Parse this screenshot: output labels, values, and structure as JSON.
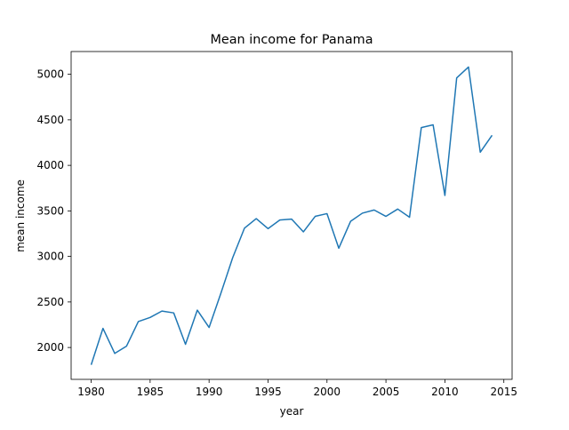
{
  "chart_data": {
    "type": "line",
    "title": "Mean income for Panama",
    "xlabel": "year",
    "ylabel": "mean income",
    "xlim": [
      1978.3,
      2015.7
    ],
    "ylim": [
      1650,
      5250
    ],
    "x_ticks": [
      1980,
      1985,
      1990,
      1995,
      2000,
      2005,
      2010,
      2015
    ],
    "y_ticks": [
      2000,
      2500,
      3000,
      3500,
      4000,
      4500,
      5000
    ],
    "grid": false,
    "legend": "none",
    "line_color": "#1f77b4",
    "x": [
      1980,
      1981,
      1982,
      1983,
      1984,
      1985,
      1986,
      1987,
      1988,
      1989,
      1990,
      1991,
      1992,
      1993,
      1994,
      1995,
      1996,
      1997,
      1998,
      1999,
      2000,
      2001,
      2002,
      2003,
      2004,
      2005,
      2006,
      2007,
      2008,
      2009,
      2010,
      2011,
      2012,
      2013,
      2014
    ],
    "series": [
      {
        "values": [
          1810,
          2210,
          1935,
          2015,
          2285,
          2330,
          2400,
          2380,
          2035,
          2410,
          2220,
          2595,
          2985,
          3310,
          3415,
          3305,
          3400,
          3410,
          3270,
          3440,
          3470,
          3090,
          3385,
          3475,
          3510,
          3440,
          3520,
          3430,
          4415,
          4445,
          3670,
          4960,
          5080,
          4145,
          4330
        ]
      }
    ]
  }
}
